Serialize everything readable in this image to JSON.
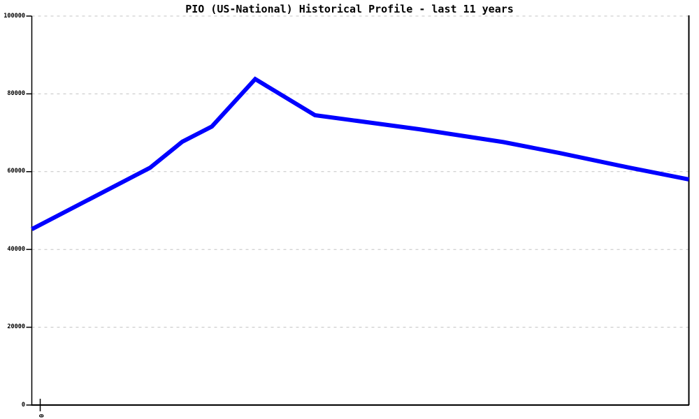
{
  "title": "PIO (US-National) Historical Profile - last 11 years",
  "colors": {
    "line": "#0000ff",
    "grid": "#c3c3c3",
    "axis": "#000000",
    "background": "#ffffff"
  },
  "chart_data": {
    "type": "line",
    "title": "PIO (US-National) Historical Profile - last 11 years",
    "xlabel": "",
    "ylabel": "",
    "ylim": [
      0,
      100000
    ],
    "yticks": [
      0,
      20000,
      40000,
      60000,
      80000,
      100000
    ],
    "ytick_labels": [
      "0",
      "20000",
      "40000",
      "60000",
      "80000",
      "100000"
    ],
    "xtick_labels": [
      "0"
    ],
    "xtick_positions_frac": [
      0.0128
    ],
    "grid": "horizontal-dashed",
    "legend": "none",
    "series": [
      {
        "name": "PIO (US-National)",
        "points": [
          {
            "x_frac": 0.0,
            "value": 45200
          },
          {
            "x_frac": 0.18,
            "value": 61000
          },
          {
            "x_frac": 0.229,
            "value": 67700
          },
          {
            "x_frac": 0.274,
            "value": 71600
          },
          {
            "x_frac": 0.34,
            "value": 83800
          },
          {
            "x_frac": 0.431,
            "value": 74500
          },
          {
            "x_frac": 0.484,
            "value": 73300
          },
          {
            "x_frac": 0.59,
            "value": 70900
          },
          {
            "x_frac": 0.718,
            "value": 67600
          },
          {
            "x_frac": 0.803,
            "value": 64800
          },
          {
            "x_frac": 0.91,
            "value": 61000
          },
          {
            "x_frac": 1.0,
            "value": 58000
          }
        ]
      }
    ]
  }
}
